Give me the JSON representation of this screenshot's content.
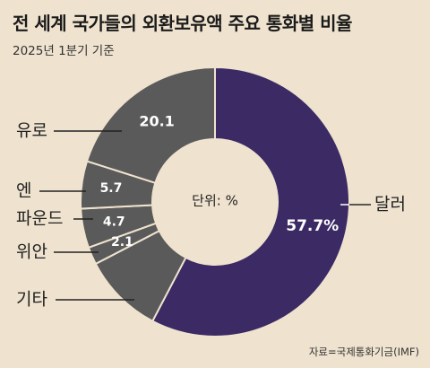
{
  "title": "전 세계 국가들의 외환보유액 주요 통화별 비율",
  "subtitle": "2025년 1분기 기준",
  "source": "자료=국제통화기금(IMF)",
  "chart_data": {
    "type": "pie",
    "style": "donut",
    "center_label": "단위: %",
    "slices": [
      {
        "name": "달러",
        "value": 57.7,
        "label": "57.7%",
        "color": "#3b2a63"
      },
      {
        "name": "기타",
        "value": 9.7,
        "label": "",
        "color": "#5a5a5a"
      },
      {
        "name": "위안",
        "value": 2.1,
        "label": "2.1",
        "color": "#5a5a5a"
      },
      {
        "name": "파운드",
        "value": 4.7,
        "label": "4.7",
        "color": "#5a5a5a"
      },
      {
        "name": "엔",
        "value": 5.7,
        "label": "5.7",
        "color": "#5a5a5a"
      },
      {
        "name": "유로",
        "value": 20.1,
        "label": "20.1",
        "color": "#5a5a5a"
      }
    ],
    "start": "12 o'clock",
    "direction": "clockwise",
    "background": "#efe3cf",
    "separator_color": "#efe3cf"
  }
}
